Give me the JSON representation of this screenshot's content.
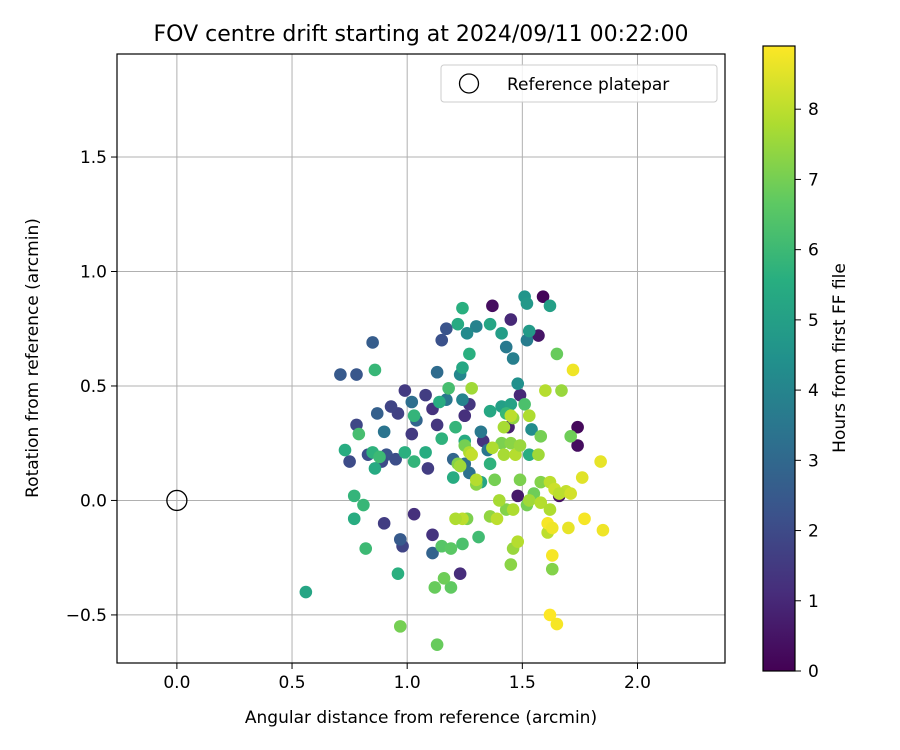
{
  "chart_data": {
    "type": "scatter",
    "title": "FOV centre drift starting at 2024/09/11 00:22:00",
    "xlabel": "Angular distance from reference (arcmin)",
    "ylabel": "Rotation from reference (arcmin)",
    "xlim": [
      -0.26,
      2.38
    ],
    "ylim": [
      -0.71,
      1.95
    ],
    "xticks": [
      0.0,
      0.5,
      1.0,
      1.5,
      2.0
    ],
    "xtick_labels": [
      "0.0",
      "0.5",
      "1.0",
      "1.5",
      "2.0"
    ],
    "yticks": [
      -0.5,
      0.0,
      0.5,
      1.0,
      1.5
    ],
    "ytick_labels": [
      "−0.5",
      "0.0",
      "0.5",
      "1.0",
      "1.5"
    ],
    "grid": true,
    "legend": {
      "position": "top-right",
      "entries": [
        "Reference platepar"
      ]
    },
    "reference_point": {
      "x": 0.0,
      "y": 0.0,
      "name": "Reference platepar"
    },
    "colorbar": {
      "label": "Hours from first FF file",
      "colormap": "viridis",
      "range": [
        0,
        8.9
      ],
      "ticks": [
        0,
        1,
        2,
        3,
        4,
        5,
        6,
        7,
        8
      ],
      "tick_labels": [
        "0",
        "1",
        "2",
        "3",
        "4",
        "5",
        "6",
        "7",
        "8"
      ]
    },
    "points": [
      {
        "x": 1.37,
        "y": 0.85,
        "c": 0.3
      },
      {
        "x": 1.59,
        "y": 0.89,
        "c": 0.1
      },
      {
        "x": 1.57,
        "y": 0.72,
        "c": 0.5
      },
      {
        "x": 1.45,
        "y": 0.79,
        "c": 1.0
      },
      {
        "x": 1.74,
        "y": 0.32,
        "c": 0.2
      },
      {
        "x": 1.74,
        "y": 0.24,
        "c": 0.3
      },
      {
        "x": 1.66,
        "y": 0.02,
        "c": 0.4
      },
      {
        "x": 1.48,
        "y": 0.02,
        "c": 0.6
      },
      {
        "x": 1.44,
        "y": 0.32,
        "c": 0.8
      },
      {
        "x": 1.49,
        "y": 0.46,
        "c": 1.0
      },
      {
        "x": 1.25,
        "y": 0.37,
        "c": 1.2
      },
      {
        "x": 1.33,
        "y": 0.26,
        "c": 1.3
      },
      {
        "x": 1.13,
        "y": 0.33,
        "c": 1.4
      },
      {
        "x": 1.02,
        "y": 0.29,
        "c": 1.5
      },
      {
        "x": 1.08,
        "y": 0.46,
        "c": 1.6
      },
      {
        "x": 0.99,
        "y": 0.48,
        "c": 1.5
      },
      {
        "x": 1.27,
        "y": 0.42,
        "c": 1.4
      },
      {
        "x": 1.11,
        "y": 0.4,
        "c": 1.3
      },
      {
        "x": 0.96,
        "y": 0.38,
        "c": 1.7
      },
      {
        "x": 0.93,
        "y": 0.41,
        "c": 1.8
      },
      {
        "x": 0.78,
        "y": 0.33,
        "c": 1.9
      },
      {
        "x": 0.75,
        "y": 0.17,
        "c": 2.0
      },
      {
        "x": 0.83,
        "y": 0.2,
        "c": 2.1
      },
      {
        "x": 0.91,
        "y": 0.2,
        "c": 2.3
      },
      {
        "x": 0.95,
        "y": 0.18,
        "c": 2.1
      },
      {
        "x": 0.89,
        "y": 0.17,
        "c": 2.0
      },
      {
        "x": 1.09,
        "y": 0.14,
        "c": 1.6
      },
      {
        "x": 1.03,
        "y": -0.06,
        "c": 1.2
      },
      {
        "x": 0.9,
        "y": -0.1,
        "c": 1.6
      },
      {
        "x": 0.98,
        "y": -0.2,
        "c": 1.8
      },
      {
        "x": 1.11,
        "y": -0.15,
        "c": 1.3
      },
      {
        "x": 1.23,
        "y": -0.32,
        "c": 1.1
      },
      {
        "x": 1.11,
        "y": -0.23,
        "c": 2.8
      },
      {
        "x": 0.97,
        "y": -0.17,
        "c": 2.5
      },
      {
        "x": 0.71,
        "y": 0.55,
        "c": 2.5
      },
      {
        "x": 0.78,
        "y": 0.55,
        "c": 2.4
      },
      {
        "x": 0.85,
        "y": 0.69,
        "c": 2.6
      },
      {
        "x": 1.15,
        "y": 0.7,
        "c": 2.2
      },
      {
        "x": 1.17,
        "y": 0.75,
        "c": 2.3
      },
      {
        "x": 0.87,
        "y": 0.38,
        "c": 2.7
      },
      {
        "x": 1.04,
        "y": 0.35,
        "c": 2.9
      },
      {
        "x": 1.13,
        "y": 0.56,
        "c": 3.1
      },
      {
        "x": 1.02,
        "y": 0.43,
        "c": 3.2
      },
      {
        "x": 1.2,
        "y": 0.18,
        "c": 2.9
      },
      {
        "x": 1.25,
        "y": 0.16,
        "c": 3.2
      },
      {
        "x": 0.9,
        "y": 0.3,
        "c": 3.4
      },
      {
        "x": 1.17,
        "y": 0.44,
        "c": 3.5
      },
      {
        "x": 1.32,
        "y": 0.3,
        "c": 3.6
      },
      {
        "x": 1.27,
        "y": 0.12,
        "c": 3.3
      },
      {
        "x": 1.35,
        "y": 0.22,
        "c": 3.5
      },
      {
        "x": 1.43,
        "y": 0.67,
        "c": 3.6
      },
      {
        "x": 1.46,
        "y": 0.62,
        "c": 3.8
      },
      {
        "x": 1.52,
        "y": 0.7,
        "c": 3.7
      },
      {
        "x": 1.3,
        "y": 0.76,
        "c": 3.9
      },
      {
        "x": 1.23,
        "y": 0.55,
        "c": 4.1
      },
      {
        "x": 1.26,
        "y": 0.73,
        "c": 4.2
      },
      {
        "x": 1.24,
        "y": 0.44,
        "c": 4.0
      },
      {
        "x": 1.54,
        "y": 0.31,
        "c": 4.3
      },
      {
        "x": 1.48,
        "y": 0.51,
        "c": 4.4
      },
      {
        "x": 1.51,
        "y": 0.89,
        "c": 4.6
      },
      {
        "x": 1.52,
        "y": 0.86,
        "c": 4.7
      },
      {
        "x": 1.53,
        "y": 0.74,
        "c": 4.8
      },
      {
        "x": 1.62,
        "y": 0.85,
        "c": 5.0
      },
      {
        "x": 1.41,
        "y": 0.73,
        "c": 4.9
      },
      {
        "x": 1.36,
        "y": 0.77,
        "c": 5.2
      },
      {
        "x": 1.41,
        "y": 0.41,
        "c": 5.0
      },
      {
        "x": 1.36,
        "y": 0.39,
        "c": 5.3
      },
      {
        "x": 1.45,
        "y": 0.42,
        "c": 5.1
      },
      {
        "x": 1.53,
        "y": 0.2,
        "c": 5.5
      },
      {
        "x": 1.24,
        "y": 0.84,
        "c": 5.6
      },
      {
        "x": 1.22,
        "y": 0.77,
        "c": 5.4
      },
      {
        "x": 1.24,
        "y": 0.58,
        "c": 5.3
      },
      {
        "x": 1.27,
        "y": 0.64,
        "c": 5.6
      },
      {
        "x": 1.25,
        "y": 0.26,
        "c": 5.4
      },
      {
        "x": 1.15,
        "y": 0.27,
        "c": 5.7
      },
      {
        "x": 1.21,
        "y": 0.32,
        "c": 5.8
      },
      {
        "x": 1.2,
        "y": 0.1,
        "c": 5.5
      },
      {
        "x": 1.32,
        "y": 0.08,
        "c": 5.2
      },
      {
        "x": 1.08,
        "y": 0.21,
        "c": 5.5
      },
      {
        "x": 1.03,
        "y": 0.17,
        "c": 5.8
      },
      {
        "x": 0.99,
        "y": 0.21,
        "c": 5.6
      },
      {
        "x": 0.86,
        "y": 0.14,
        "c": 5.4
      },
      {
        "x": 0.85,
        "y": 0.21,
        "c": 5.7
      },
      {
        "x": 0.88,
        "y": 0.19,
        "c": 6.0
      },
      {
        "x": 0.73,
        "y": 0.22,
        "c": 5.5
      },
      {
        "x": 0.79,
        "y": 0.29,
        "c": 6.2
      },
      {
        "x": 0.86,
        "y": 0.57,
        "c": 5.9
      },
      {
        "x": 0.77,
        "y": 0.02,
        "c": 5.8
      },
      {
        "x": 0.77,
        "y": -0.08,
        "c": 5.5
      },
      {
        "x": 0.81,
        "y": -0.02,
        "c": 5.9
      },
      {
        "x": 0.82,
        "y": -0.21,
        "c": 6.0
      },
      {
        "x": 0.96,
        "y": -0.32,
        "c": 5.6
      },
      {
        "x": 0.56,
        "y": -0.4,
        "c": 5.2
      },
      {
        "x": 1.03,
        "y": 0.37,
        "c": 5.8
      },
      {
        "x": 1.14,
        "y": 0.43,
        "c": 5.5
      },
      {
        "x": 1.18,
        "y": 0.49,
        "c": 6.2
      },
      {
        "x": 1.43,
        "y": 0.38,
        "c": 5.9
      },
      {
        "x": 1.51,
        "y": 0.42,
        "c": 6.3
      },
      {
        "x": 1.36,
        "y": 0.16,
        "c": 5.7
      },
      {
        "x": 1.15,
        "y": -0.2,
        "c": 6.5
      },
      {
        "x": 1.24,
        "y": -0.19,
        "c": 6.3
      },
      {
        "x": 1.31,
        "y": -0.16,
        "c": 6.1
      },
      {
        "x": 1.19,
        "y": -0.21,
        "c": 6.6
      },
      {
        "x": 1.12,
        "y": -0.38,
        "c": 6.8
      },
      {
        "x": 1.19,
        "y": -0.38,
        "c": 6.7
      },
      {
        "x": 1.16,
        "y": -0.34,
        "c": 6.9
      },
      {
        "x": 0.97,
        "y": -0.55,
        "c": 7.0
      },
      {
        "x": 1.13,
        "y": -0.63,
        "c": 6.8
      },
      {
        "x": 1.65,
        "y": 0.64,
        "c": 6.8
      },
      {
        "x": 1.58,
        "y": 0.28,
        "c": 7.0
      },
      {
        "x": 1.71,
        "y": 0.28,
        "c": 6.9
      },
      {
        "x": 1.49,
        "y": 0.09,
        "c": 7.1
      },
      {
        "x": 1.58,
        "y": 0.08,
        "c": 7.2
      },
      {
        "x": 1.38,
        "y": 0.09,
        "c": 7.0
      },
      {
        "x": 1.3,
        "y": 0.07,
        "c": 7.3
      },
      {
        "x": 1.43,
        "y": -0.04,
        "c": 7.2
      },
      {
        "x": 1.36,
        "y": -0.07,
        "c": 7.4
      },
      {
        "x": 1.26,
        "y": -0.08,
        "c": 7.1
      },
      {
        "x": 1.52,
        "y": -0.02,
        "c": 7.0
      },
      {
        "x": 1.55,
        "y": 0.03,
        "c": 6.9
      },
      {
        "x": 1.63,
        "y": -0.3,
        "c": 7.2
      },
      {
        "x": 1.45,
        "y": -0.28,
        "c": 7.3
      },
      {
        "x": 1.46,
        "y": -0.21,
        "c": 7.5
      },
      {
        "x": 1.22,
        "y": 0.16,
        "c": 7.2
      },
      {
        "x": 1.25,
        "y": 0.24,
        "c": 7.0
      },
      {
        "x": 1.41,
        "y": 0.25,
        "c": 7.1
      },
      {
        "x": 1.45,
        "y": 0.25,
        "c": 7.3
      },
      {
        "x": 1.67,
        "y": 0.48,
        "c": 7.5
      },
      {
        "x": 1.46,
        "y": 0.36,
        "c": 7.4
      },
      {
        "x": 1.28,
        "y": 0.49,
        "c": 7.6
      },
      {
        "x": 1.42,
        "y": 0.32,
        "c": 7.7
      },
      {
        "x": 1.53,
        "y": 0.37,
        "c": 7.8
      },
      {
        "x": 1.6,
        "y": 0.48,
        "c": 7.9
      },
      {
        "x": 1.23,
        "y": 0.15,
        "c": 7.6
      },
      {
        "x": 1.27,
        "y": 0.21,
        "c": 7.8
      },
      {
        "x": 1.42,
        "y": 0.2,
        "c": 7.7
      },
      {
        "x": 1.47,
        "y": 0.2,
        "c": 7.9
      },
      {
        "x": 1.49,
        "y": 0.24,
        "c": 7.5
      },
      {
        "x": 1.57,
        "y": 0.2,
        "c": 7.6
      },
      {
        "x": 1.45,
        "y": 0.37,
        "c": 8.0
      },
      {
        "x": 1.37,
        "y": 0.23,
        "c": 7.8
      },
      {
        "x": 1.3,
        "y": 0.09,
        "c": 7.9
      },
      {
        "x": 1.4,
        "y": 0.0,
        "c": 7.7
      },
      {
        "x": 1.39,
        "y": -0.08,
        "c": 8.0
      },
      {
        "x": 1.46,
        "y": -0.04,
        "c": 7.8
      },
      {
        "x": 1.53,
        "y": 0.0,
        "c": 7.6
      },
      {
        "x": 1.58,
        "y": -0.01,
        "c": 7.9
      },
      {
        "x": 1.62,
        "y": -0.04,
        "c": 7.8
      },
      {
        "x": 1.61,
        "y": -0.14,
        "c": 8.0
      },
      {
        "x": 1.48,
        "y": -0.18,
        "c": 7.9
      },
      {
        "x": 1.24,
        "y": -0.08,
        "c": 8.0
      },
      {
        "x": 1.21,
        "y": -0.08,
        "c": 7.8
      },
      {
        "x": 1.28,
        "y": 0.2,
        "c": 8.1
      },
      {
        "x": 1.62,
        "y": 0.08,
        "c": 8.0
      },
      {
        "x": 1.69,
        "y": 0.04,
        "c": 8.1
      },
      {
        "x": 1.64,
        "y": 0.05,
        "c": 8.2
      },
      {
        "x": 1.66,
        "y": 0.03,
        "c": 8.0
      },
      {
        "x": 1.71,
        "y": 0.03,
        "c": 8.3
      },
      {
        "x": 1.76,
        "y": 0.1,
        "c": 8.5
      },
      {
        "x": 1.72,
        "y": 0.57,
        "c": 8.7
      },
      {
        "x": 1.84,
        "y": 0.17,
        "c": 8.6
      },
      {
        "x": 1.61,
        "y": -0.1,
        "c": 8.8
      },
      {
        "x": 1.63,
        "y": -0.12,
        "c": 8.7
      },
      {
        "x": 1.7,
        "y": -0.12,
        "c": 8.6
      },
      {
        "x": 1.77,
        "y": -0.08,
        "c": 8.8
      },
      {
        "x": 1.85,
        "y": -0.13,
        "c": 8.7
      },
      {
        "x": 1.63,
        "y": -0.24,
        "c": 8.8
      },
      {
        "x": 1.62,
        "y": -0.5,
        "c": 8.9
      },
      {
        "x": 1.65,
        "y": -0.54,
        "c": 8.8
      }
    ]
  }
}
